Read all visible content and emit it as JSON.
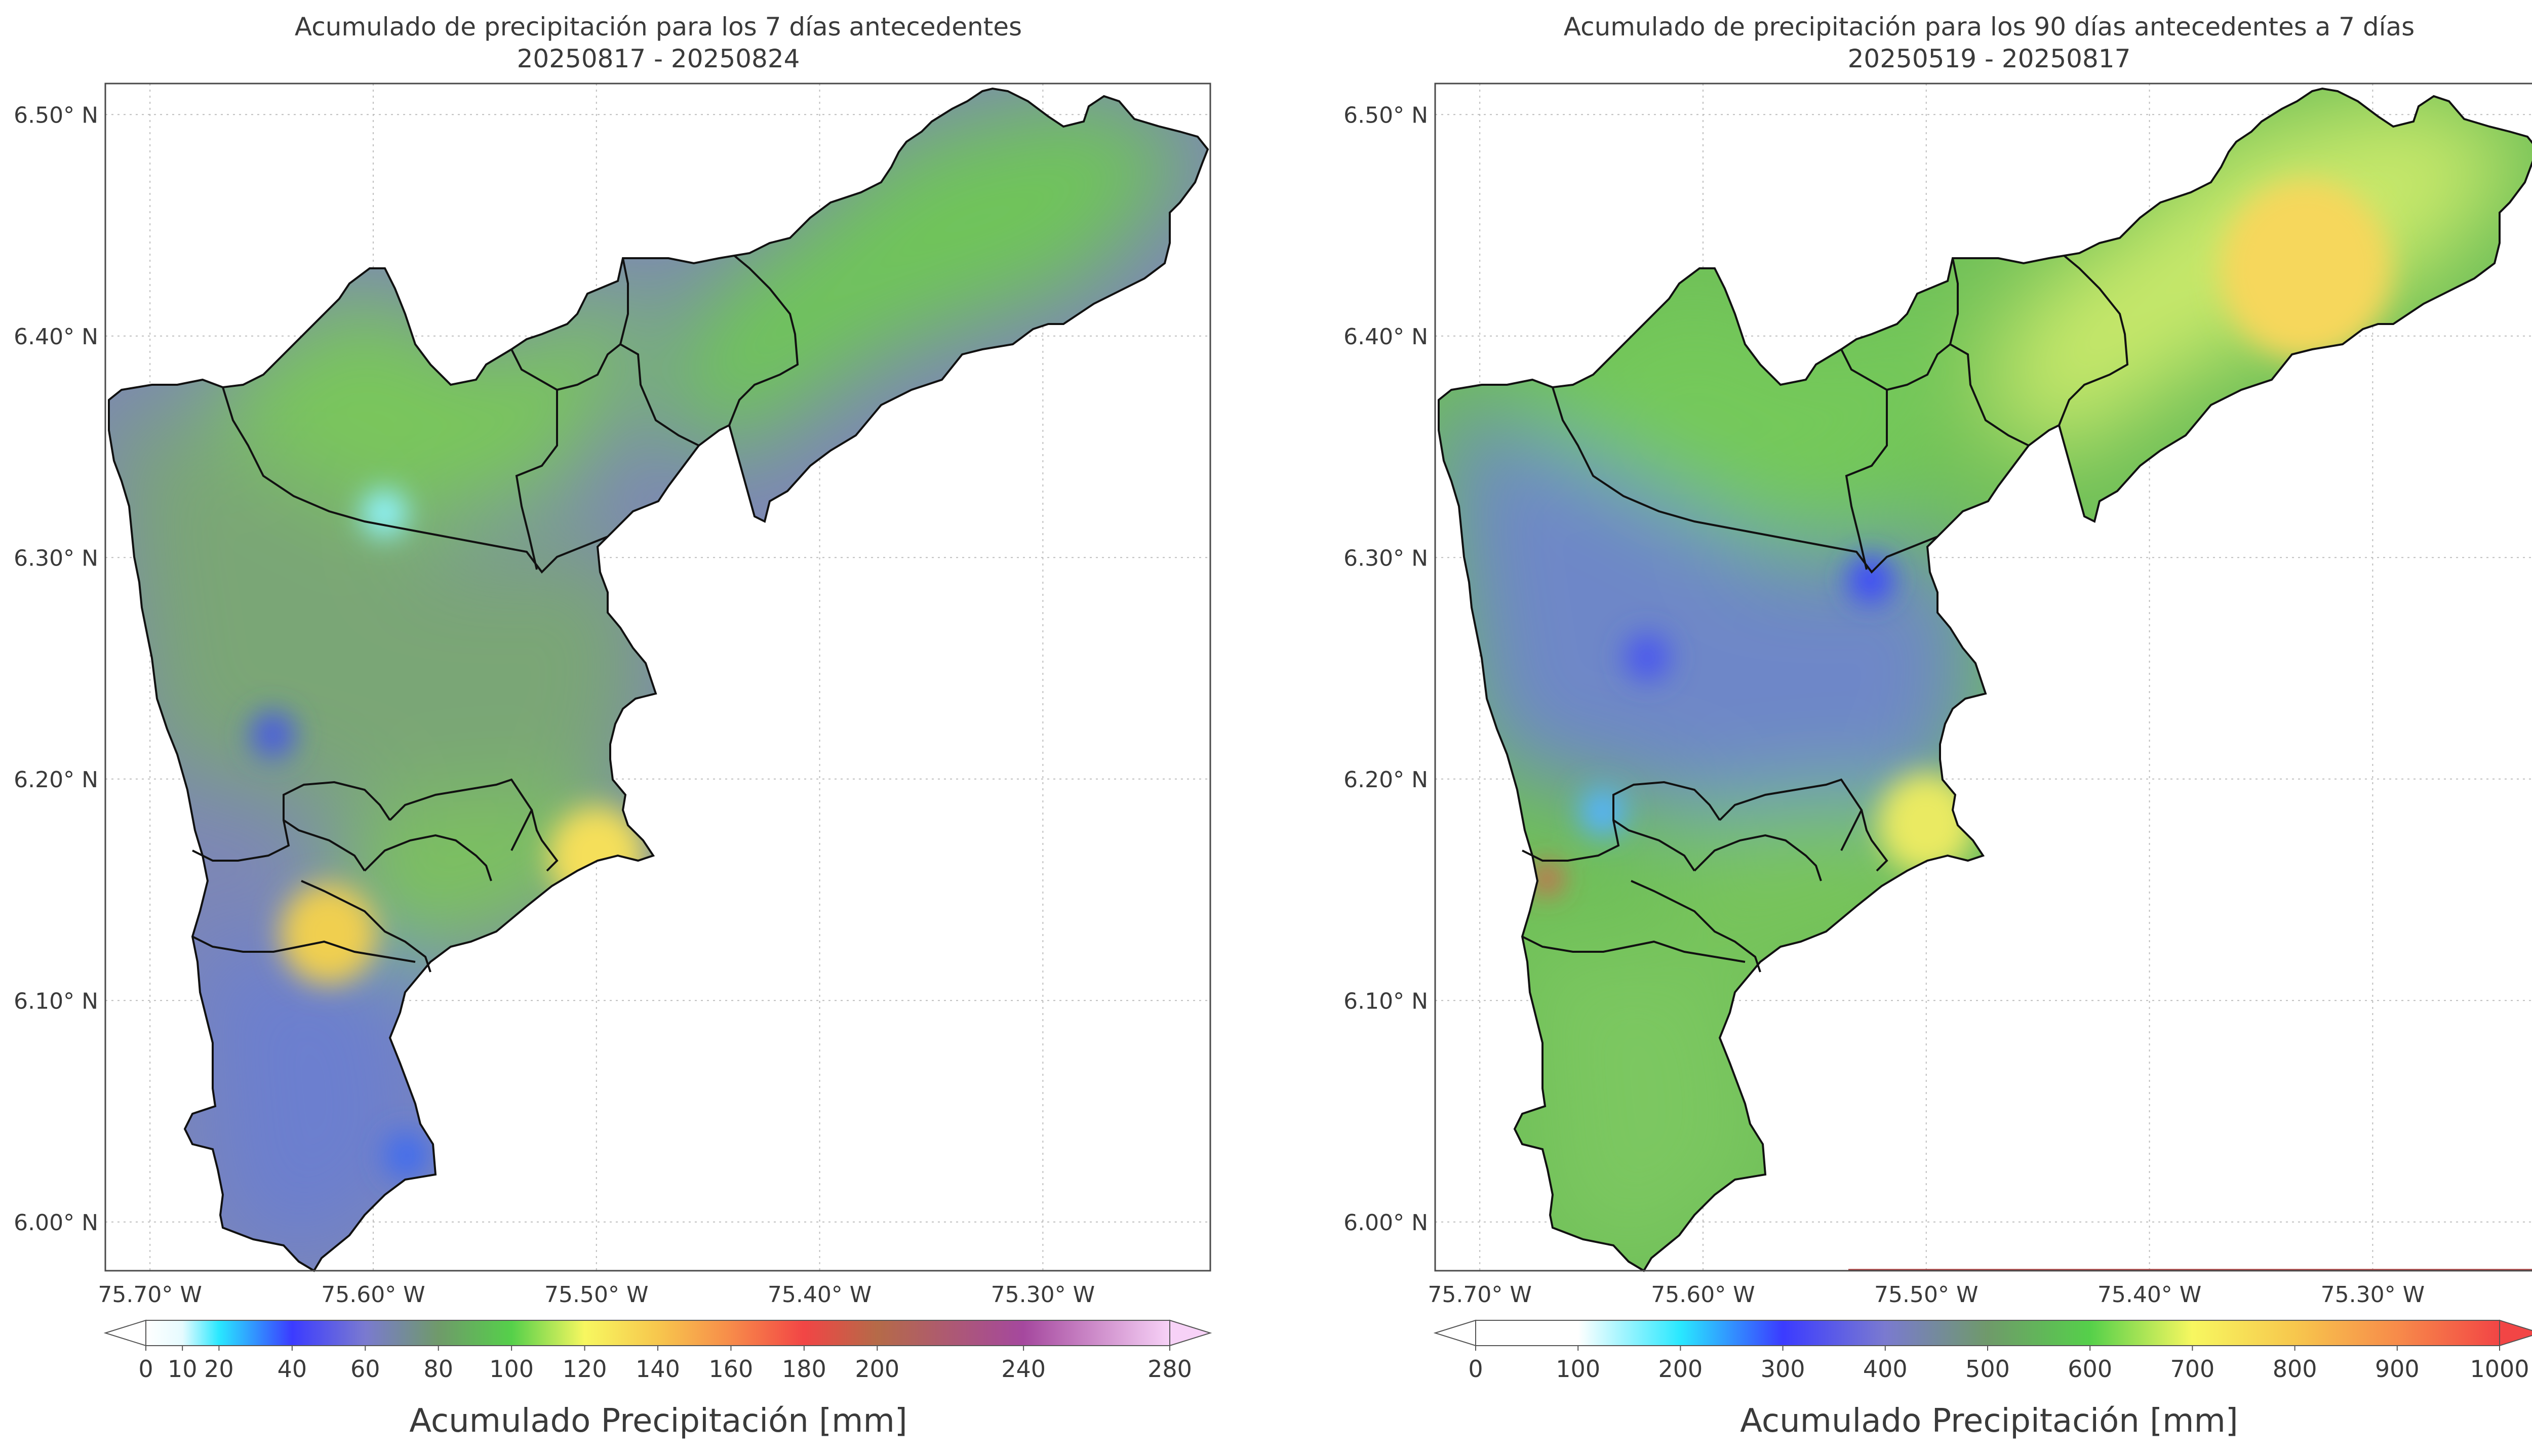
{
  "panels": [
    {
      "title_line1": "Acumulado de precipitación para los 7 días antecedentes",
      "title_line2": "20250817 - 20250824",
      "lon_ticks": [
        "75.70° W",
        "75.60° W",
        "75.50° W",
        "75.40° W",
        "75.30° W"
      ],
      "lat_ticks": [
        "6.50° N",
        "6.40° N",
        "6.30° N",
        "6.20° N",
        "6.10° N",
        "6.00° N"
      ],
      "colorbar": {
        "label": "Acumulado Precipitación [mm]",
        "range": [
          0,
          280
        ],
        "extend": "both",
        "tick_labels": [
          "0",
          "10",
          "20",
          "40",
          "60",
          "80",
          "100",
          "120",
          "140",
          "160",
          "180",
          "200",
          "240",
          "280"
        ],
        "tick_values": [
          0,
          10,
          20,
          40,
          60,
          80,
          100,
          120,
          140,
          160,
          180,
          200,
          240,
          280
        ],
        "color_stops": [
          {
            "value": 0,
            "color": "#ffffff"
          },
          {
            "value": 10,
            "color": "#e6fbff"
          },
          {
            "value": 20,
            "color": "#29e8ff"
          },
          {
            "value": 40,
            "color": "#3b3bff"
          },
          {
            "value": 60,
            "color": "#7a7ad0"
          },
          {
            "value": 80,
            "color": "#6f9a6a"
          },
          {
            "value": 100,
            "color": "#55d04a"
          },
          {
            "value": 120,
            "color": "#f7f760"
          },
          {
            "value": 140,
            "color": "#f7c74d"
          },
          {
            "value": 160,
            "color": "#f78b4a"
          },
          {
            "value": 180,
            "color": "#f24545"
          },
          {
            "value": 200,
            "color": "#b56a48"
          },
          {
            "value": 240,
            "color": "#a5489e"
          },
          {
            "value": 280,
            "color": "#f7d2f7"
          }
        ]
      },
      "field": {
        "base_color": "#7d87b5",
        "zones": [
          {
            "name": "northeast",
            "color": "#6fc45a"
          },
          {
            "name": "north-central",
            "color": "#79c65c"
          },
          {
            "name": "center",
            "color": "#7aa676"
          },
          {
            "name": "south-east",
            "color": "#7cc15e"
          },
          {
            "name": "south",
            "color": "#6c7fcf"
          }
        ],
        "hotspots": [
          {
            "name": "yellow-maximum-east",
            "lon": -75.5,
            "lat": 6.165,
            "value": 130,
            "color": "#f5df5a"
          },
          {
            "name": "yellow-maximum-west",
            "lon": -75.62,
            "lat": 6.13,
            "value": 135,
            "color": "#f0cf50"
          },
          {
            "name": "blue-minimum-north",
            "lon": -75.595,
            "lat": 6.32,
            "value": 20,
            "color": "#8ff4ff"
          },
          {
            "name": "blue-minimum-center",
            "lon": -75.645,
            "lat": 6.22,
            "value": 35,
            "color": "#4a5be0"
          },
          {
            "name": "blue-minimum-south",
            "lon": -75.585,
            "lat": 6.03,
            "value": 30,
            "color": "#3f6cf0"
          }
        ]
      }
    },
    {
      "title_line1": "Acumulado de precipitación para los 90 días antecedentes a 7 días",
      "title_line2": "20250519 - 20250817",
      "lon_ticks": [
        "75.70° W",
        "75.60° W",
        "75.50° W",
        "75.40° W",
        "75.30° W"
      ],
      "lat_ticks": [
        "6.50° N",
        "6.40° N",
        "6.30° N",
        "6.20° N",
        "6.10° N",
        "6.00° N"
      ],
      "colorbar": {
        "label": "Acumulado Precipitación [mm]",
        "range": [
          0,
          1000
        ],
        "extend": "both",
        "tick_labels": [
          "0",
          "100",
          "200",
          "300",
          "400",
          "500",
          "600",
          "700",
          "800",
          "900",
          "1000"
        ],
        "tick_values": [
          0,
          100,
          200,
          300,
          400,
          500,
          600,
          700,
          800,
          900,
          1000
        ],
        "color_stops": [
          {
            "value": 0,
            "color": "#ffffff"
          },
          {
            "value": 100,
            "color": "#ffffff"
          },
          {
            "value": 200,
            "color": "#29e8ff"
          },
          {
            "value": 300,
            "color": "#3b3bff"
          },
          {
            "value": 400,
            "color": "#7a7ad0"
          },
          {
            "value": 500,
            "color": "#6f9a6a"
          },
          {
            "value": 600,
            "color": "#55d04a"
          },
          {
            "value": 700,
            "color": "#f7f760"
          },
          {
            "value": 800,
            "color": "#f7c74d"
          },
          {
            "value": 900,
            "color": "#f78b4a"
          },
          {
            "value": 1000,
            "color": "#f24545"
          }
        ]
      },
      "field": {
        "base_color": "#6fbf58",
        "zones": [
          {
            "name": "northeast",
            "color": "#c8e86a"
          },
          {
            "name": "north-central",
            "color": "#74c95a"
          },
          {
            "name": "center",
            "color": "#6e87c8"
          },
          {
            "name": "south-east",
            "color": "#78c45c"
          },
          {
            "name": "south",
            "color": "#7cc760"
          }
        ],
        "hotspots": [
          {
            "name": "yellow-maximum-northeast",
            "lon": -75.33,
            "lat": 6.43,
            "value": 780,
            "color": "#f6d75c"
          },
          {
            "name": "yellow-maximum-east",
            "lon": -75.5,
            "lat": 6.18,
            "value": 700,
            "color": "#eaea62"
          },
          {
            "name": "blue-minimum-center-north",
            "lon": -75.525,
            "lat": 6.29,
            "value": 280,
            "color": "#3b46ff"
          },
          {
            "name": "blue-minimum-center",
            "lon": -75.625,
            "lat": 6.255,
            "value": 300,
            "color": "#4a57f0"
          },
          {
            "name": "blue-minimum-west",
            "lon": -75.645,
            "lat": 6.185,
            "value": 250,
            "color": "#52b4ff"
          },
          {
            "name": "red-maximum-west",
            "lon": -75.67,
            "lat": 6.155,
            "value": 950,
            "color": "#f04848"
          }
        ]
      }
    }
  ]
}
